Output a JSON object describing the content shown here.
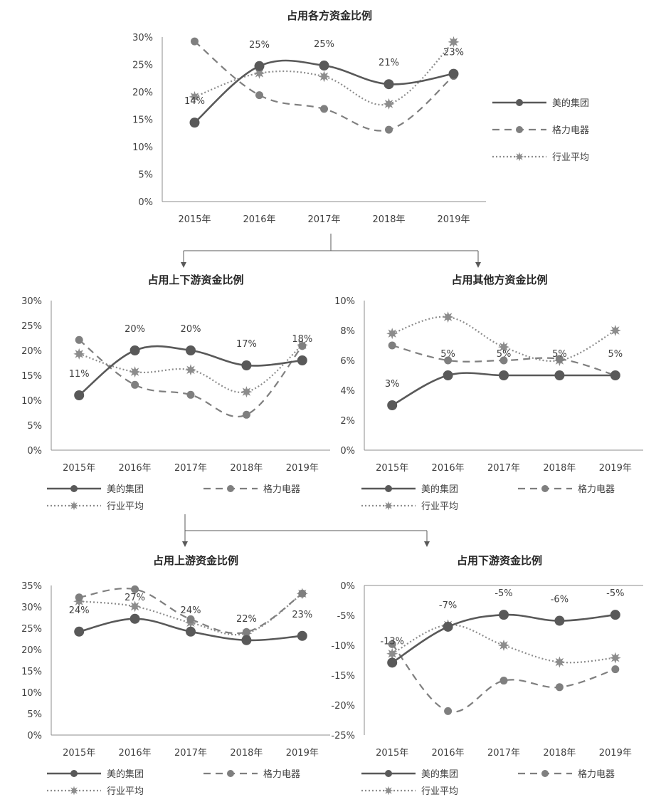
{
  "colors": {
    "s0": "#595959",
    "s1": "#7f7f7f",
    "s2": "#8c8c8c",
    "axis": "#8c8c8c",
    "text": "#404040",
    "title": "#262626",
    "arrow": "#595959"
  },
  "series_styles": [
    {
      "name": "美的集团",
      "dash": "",
      "marker": "circle"
    },
    {
      "name": "格力电器",
      "dash": "10,7",
      "marker": "circle"
    },
    {
      "name": "行业平均",
      "dash": "2,3",
      "marker": "star"
    }
  ],
  "chart_data": [
    {
      "id": "total",
      "type": "line",
      "title": "占用各方资金比例",
      "categories": [
        "2015年",
        "2016年",
        "2017年",
        "2018年",
        "2019年"
      ],
      "y_ticks": [
        "0%",
        "5%",
        "10%",
        "15%",
        "20%",
        "25%",
        "30%"
      ],
      "ylim": [
        0,
        30
      ],
      "series": [
        {
          "name": "美的集团",
          "values": [
            14.4,
            24.7,
            24.8,
            21.4,
            23.3
          ],
          "labels": [
            "14%",
            "25%",
            "25%",
            "21%",
            "23%"
          ]
        },
        {
          "name": "格力电器",
          "values": [
            29.2,
            19.4,
            16.9,
            13.1,
            22.9
          ]
        },
        {
          "name": "行业平均",
          "values": [
            19.1,
            23.4,
            22.8,
            17.8,
            29.1
          ]
        }
      ],
      "legend": "right"
    },
    {
      "id": "updown",
      "type": "line",
      "title": "占用上下游资金比例",
      "categories": [
        "2015年",
        "2016年",
        "2017年",
        "2018年",
        "2019年"
      ],
      "y_ticks": [
        "0%",
        "5%",
        "10%",
        "15%",
        "20%",
        "25%",
        "30%"
      ],
      "ylim": [
        0,
        30
      ],
      "series": [
        {
          "name": "美的集团",
          "values": [
            11,
            20,
            20,
            17,
            18
          ],
          "labels": [
            "11%",
            "20%",
            "20%",
            "17%",
            "18%"
          ]
        },
        {
          "name": "格力电器",
          "values": [
            22.1,
            13.1,
            11.1,
            7.1,
            20.9
          ]
        },
        {
          "name": "行业平均",
          "values": [
            19.3,
            15.7,
            16.1,
            11.7,
            21.1
          ]
        }
      ],
      "legend": "bottom"
    },
    {
      "id": "other",
      "type": "line",
      "title": "占用其他方资金比例",
      "categories": [
        "2015年",
        "2016年",
        "2017年",
        "2018年",
        "2019年"
      ],
      "y_ticks": [
        "0%",
        "2%",
        "4%",
        "6%",
        "8%",
        "10%"
      ],
      "ylim": [
        0,
        10
      ],
      "series": [
        {
          "name": "美的集团",
          "values": [
            3,
            5,
            5,
            5,
            5
          ],
          "labels": [
            "3%",
            "5%",
            "5%",
            "5%",
            "5%"
          ]
        },
        {
          "name": "格力电器",
          "values": [
            7,
            6,
            6,
            6.1,
            5
          ]
        },
        {
          "name": "行业平均",
          "values": [
            7.8,
            8.9,
            6.9,
            6,
            8
          ]
        }
      ],
      "legend": "bottom"
    },
    {
      "id": "up",
      "type": "line",
      "title": "占用上游资金比例",
      "categories": [
        "2015年",
        "2016年",
        "2017年",
        "2018年",
        "2019年"
      ],
      "y_ticks": [
        "0%",
        "5%",
        "10%",
        "15%",
        "20%",
        "25%",
        "30%",
        "35%"
      ],
      "ylim": [
        0,
        35
      ],
      "series": [
        {
          "name": "美的集团",
          "values": [
            24.2,
            27.2,
            24.2,
            22.2,
            23.2
          ],
          "labels": [
            "24%",
            "27%",
            "24%",
            "22%",
            "23%"
          ]
        },
        {
          "name": "格力电器",
          "values": [
            32.2,
            34.1,
            27.1,
            24.1,
            33.1
          ]
        },
        {
          "name": "行业平均",
          "values": [
            31.3,
            30.1,
            26.3,
            23.8,
            33.1
          ]
        }
      ],
      "legend": "bottom"
    },
    {
      "id": "down",
      "type": "line",
      "title": "占用下游资金比例",
      "categories": [
        "2015年",
        "2016年",
        "2017年",
        "2018年",
        "2019年"
      ],
      "y_ticks": [
        "0%",
        "-5%",
        "-10%",
        "-15%",
        "-20%",
        "-25%"
      ],
      "ylim": [
        -25,
        0
      ],
      "series": [
        {
          "name": "美的集团",
          "values": [
            -12.9,
            -6.9,
            -4.9,
            -5.9,
            -4.9
          ],
          "labels": [
            "-13%",
            "-7%",
            "-5%",
            "-6%",
            "-5%"
          ]
        },
        {
          "name": "格力电器",
          "values": [
            -9.8,
            -21,
            -15.9,
            -17,
            -14
          ]
        },
        {
          "name": "行业平均",
          "values": [
            -11.4,
            -6.6,
            -10,
            -12.8,
            -12.1
          ]
        }
      ],
      "legend": "bottom"
    }
  ]
}
